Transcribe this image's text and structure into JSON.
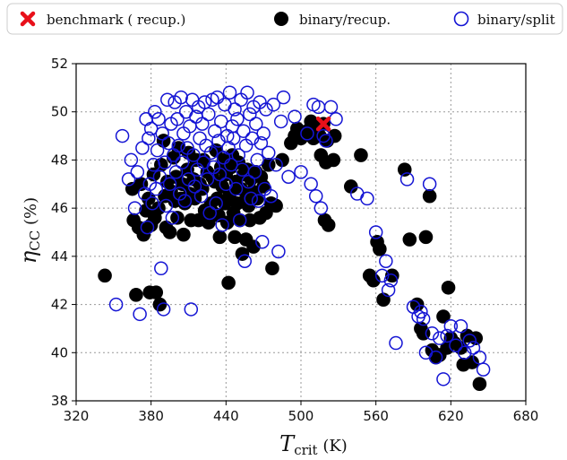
{
  "chart_data": {
    "type": "scatter",
    "xlabel": {
      "main": "T",
      "sub": "crit",
      "unit": " (K)"
    },
    "ylabel": {
      "main": "η",
      "sub": "CC",
      "unit": " (%)"
    },
    "xlim": [
      320,
      680
    ],
    "ylim": [
      38,
      52
    ],
    "xticks": [
      320,
      380,
      440,
      500,
      560,
      620,
      680
    ],
    "yticks": [
      38,
      40,
      42,
      44,
      46,
      48,
      50,
      52
    ],
    "grid": true,
    "legend": {
      "placement": "top",
      "entries": [
        "benchmark ( recup.)",
        "binary/recup.",
        "binary/split"
      ]
    },
    "colors": {
      "benchmark": "#e8101a",
      "recup": "#000000",
      "split": "#1414d4"
    },
    "series": [
      {
        "name": "binary/recup.",
        "marker": "filled-circle",
        "points": [
          [
            343,
            43.2
          ],
          [
            365,
            46.8
          ],
          [
            366,
            45.5
          ],
          [
            368,
            42.4
          ],
          [
            370,
            45.2
          ],
          [
            372,
            47
          ],
          [
            374,
            44.9
          ],
          [
            376,
            45.9
          ],
          [
            378,
            46.4
          ],
          [
            379,
            42.5
          ],
          [
            380,
            45.3
          ],
          [
            382,
            47.4
          ],
          [
            383,
            45.6
          ],
          [
            384,
            42.5
          ],
          [
            386,
            46
          ],
          [
            387,
            42
          ],
          [
            388,
            47.8
          ],
          [
            390,
            48.8
          ],
          [
            391,
            46.5
          ],
          [
            392,
            45.2
          ],
          [
            393,
            47.1
          ],
          [
            395,
            45
          ],
          [
            396,
            46.7
          ],
          [
            398,
            48.1
          ],
          [
            399,
            46.3
          ],
          [
            400,
            47.3
          ],
          [
            401,
            45.6
          ],
          [
            402,
            48.5
          ],
          [
            404,
            46.4
          ],
          [
            405,
            47
          ],
          [
            406,
            44.9
          ],
          [
            407,
            46.2
          ],
          [
            409,
            47.6
          ],
          [
            410,
            48.3
          ],
          [
            411,
            46.6
          ],
          [
            412,
            45.5
          ],
          [
            414,
            47.2
          ],
          [
            415,
            46.4
          ],
          [
            416,
            48
          ],
          [
            418,
            45.5
          ],
          [
            419,
            47
          ],
          [
            421,
            46.8
          ],
          [
            422,
            48
          ],
          [
            423,
            45.9
          ],
          [
            425,
            47.5
          ],
          [
            426,
            45.4
          ],
          [
            428,
            46.2
          ],
          [
            429,
            47.3
          ],
          [
            430,
            45.8
          ],
          [
            431,
            47.1
          ],
          [
            432,
            48.4
          ],
          [
            433,
            46.4
          ],
          [
            434,
            45.7
          ],
          [
            435,
            44.8
          ],
          [
            436,
            47.7
          ],
          [
            437,
            46.9
          ],
          [
            438,
            48
          ],
          [
            439,
            46.2
          ],
          [
            440,
            47.4
          ],
          [
            441,
            45.4
          ],
          [
            442,
            42.9
          ],
          [
            443,
            46.6
          ],
          [
            444,
            47.7
          ],
          [
            445,
            48.2
          ],
          [
            446,
            45.8
          ],
          [
            447,
            44.8
          ],
          [
            448,
            47.1
          ],
          [
            449,
            46.2
          ],
          [
            450,
            47.9
          ],
          [
            451,
            45.5
          ],
          [
            452,
            46.8
          ],
          [
            453,
            44.1
          ],
          [
            454,
            47.4
          ],
          [
            455,
            46.3
          ],
          [
            456,
            44.7
          ],
          [
            457,
            47.6
          ],
          [
            458,
            46.1
          ],
          [
            459,
            45.5
          ],
          [
            460,
            47.2
          ],
          [
            461,
            46.7
          ],
          [
            462,
            44.4
          ],
          [
            464,
            47.5
          ],
          [
            465,
            46.4
          ],
          [
            467,
            45.6
          ],
          [
            468,
            47.3
          ],
          [
            470,
            46.9
          ],
          [
            472,
            45.8
          ],
          [
            474,
            47.8
          ],
          [
            476,
            46.2
          ],
          [
            477,
            43.5
          ],
          [
            480,
            46.1
          ],
          [
            485,
            48
          ],
          [
            492,
            48.7
          ],
          [
            495,
            49
          ],
          [
            497,
            49.3
          ],
          [
            500,
            48.9
          ],
          [
            505,
            49.2
          ],
          [
            508,
            49.6
          ],
          [
            510,
            48.9
          ],
          [
            513,
            49.3
          ],
          [
            515,
            49
          ],
          [
            516,
            48.2
          ],
          [
            518,
            49.5
          ],
          [
            519,
            45.5
          ],
          [
            520,
            47.9
          ],
          [
            521,
            48.8
          ],
          [
            522,
            45.3
          ],
          [
            526,
            48
          ],
          [
            527,
            49
          ],
          [
            540,
            46.9
          ],
          [
            548,
            48.2
          ],
          [
            555,
            43.2
          ],
          [
            558,
            43
          ],
          [
            561,
            44.6
          ],
          [
            563,
            44.3
          ],
          [
            566,
            42.2
          ],
          [
            573,
            43.2
          ],
          [
            583,
            47.6
          ],
          [
            587,
            44.7
          ],
          [
            593,
            42
          ],
          [
            596,
            41
          ],
          [
            598,
            40.8
          ],
          [
            600,
            44.8
          ],
          [
            603,
            46.5
          ],
          [
            605,
            40.1
          ],
          [
            608,
            39.8
          ],
          [
            611,
            39.9
          ],
          [
            614,
            41.5
          ],
          [
            617,
            40.2
          ],
          [
            618,
            42.7
          ],
          [
            620,
            40.6
          ],
          [
            623,
            40.4
          ],
          [
            628,
            40.2
          ],
          [
            630,
            39.5
          ],
          [
            633,
            40.7
          ],
          [
            637,
            39.6
          ],
          [
            640,
            40.6
          ],
          [
            643,
            38.7
          ]
        ]
      },
      {
        "name": "binary/split",
        "marker": "hollow-circle",
        "points": [
          [
            352,
            42
          ],
          [
            357,
            49
          ],
          [
            362,
            47.2
          ],
          [
            364,
            48
          ],
          [
            367,
            46
          ],
          [
            369,
            47.5
          ],
          [
            371,
            41.6
          ],
          [
            373,
            48.5
          ],
          [
            375,
            46.6
          ],
          [
            376,
            49.7
          ],
          [
            377,
            45.2
          ],
          [
            378,
            48.9
          ],
          [
            379,
            47
          ],
          [
            380,
            49.3
          ],
          [
            381,
            46.2
          ],
          [
            382,
            47.8
          ],
          [
            383,
            50
          ],
          [
            384,
            46.8
          ],
          [
            385,
            48.4
          ],
          [
            386,
            49.7
          ],
          [
            387,
            47.3
          ],
          [
            388,
            43.5
          ],
          [
            389,
            49.1
          ],
          [
            390,
            41.8
          ],
          [
            391,
            47.9
          ],
          [
            392,
            46.1
          ],
          [
            393,
            50.5
          ],
          [
            394,
            48.7
          ],
          [
            395,
            47
          ],
          [
            396,
            49.5
          ],
          [
            397,
            45.6
          ],
          [
            398,
            48.2
          ],
          [
            399,
            50.4
          ],
          [
            400,
            47.5
          ],
          [
            401,
            49.7
          ],
          [
            402,
            48.6
          ],
          [
            403,
            46.6
          ],
          [
            404,
            50.6
          ],
          [
            405,
            47.9
          ],
          [
            406,
            49.1
          ],
          [
            407,
            46.3
          ],
          [
            408,
            50
          ],
          [
            409,
            48.5
          ],
          [
            410,
            47.2
          ],
          [
            411,
            49.4
          ],
          [
            412,
            41.8
          ],
          [
            413,
            50.5
          ],
          [
            414,
            48.2
          ],
          [
            415,
            46.9
          ],
          [
            416,
            49.8
          ],
          [
            417,
            47.6
          ],
          [
            418,
            50.2
          ],
          [
            419,
            48.9
          ],
          [
            420,
            46.5
          ],
          [
            421,
            49.5
          ],
          [
            422,
            47.9
          ],
          [
            423,
            50.4
          ],
          [
            424,
            48.6
          ],
          [
            425,
            47.2
          ],
          [
            426,
            49.9
          ],
          [
            427,
            45.8
          ],
          [
            428,
            48.3
          ],
          [
            429,
            50.5
          ],
          [
            430,
            47.7
          ],
          [
            431,
            49.2
          ],
          [
            432,
            46.2
          ],
          [
            433,
            50.6
          ],
          [
            434,
            48.8
          ],
          [
            435,
            47.4
          ],
          [
            436,
            49.6
          ],
          [
            437,
            45.3
          ],
          [
            438,
            48.1
          ],
          [
            439,
            50.3
          ],
          [
            440,
            47
          ],
          [
            441,
            49
          ],
          [
            442,
            48.5
          ],
          [
            443,
            50.8
          ],
          [
            444,
            47.8
          ],
          [
            445,
            49.4
          ],
          [
            446,
            48.9
          ],
          [
            447,
            50.1
          ],
          [
            448,
            46.8
          ],
          [
            449,
            49.7
          ],
          [
            450,
            48.2
          ],
          [
            451,
            45.5
          ],
          [
            452,
            50.5
          ],
          [
            453,
            47.6
          ],
          [
            454,
            49.2
          ],
          [
            455,
            43.8
          ],
          [
            456,
            48.6
          ],
          [
            457,
            50.8
          ],
          [
            458,
            47.1
          ],
          [
            459,
            49.9
          ],
          [
            460,
            46.4
          ],
          [
            461,
            48.9
          ],
          [
            462,
            50.2
          ],
          [
            463,
            47.5
          ],
          [
            464,
            49.5
          ],
          [
            465,
            48
          ],
          [
            466,
            46.3
          ],
          [
            467,
            50.4
          ],
          [
            468,
            48.7
          ],
          [
            469,
            44.6
          ],
          [
            470,
            49.1
          ],
          [
            471,
            46.8
          ],
          [
            472,
            50.1
          ],
          [
            474,
            48.3
          ],
          [
            476,
            46.5
          ],
          [
            478,
            50.3
          ],
          [
            480,
            47.8
          ],
          [
            482,
            44.2
          ],
          [
            484,
            49.6
          ],
          [
            486,
            50.6
          ],
          [
            490,
            47.3
          ],
          [
            495,
            49.8
          ],
          [
            500,
            47.5
          ],
          [
            505,
            49.1
          ],
          [
            508,
            47
          ],
          [
            510,
            50.3
          ],
          [
            512,
            46.5
          ],
          [
            514,
            50.2
          ],
          [
            516,
            46
          ],
          [
            518,
            49
          ],
          [
            520,
            48.8
          ],
          [
            524,
            50.2
          ],
          [
            528,
            49.7
          ],
          [
            545,
            46.6
          ],
          [
            553,
            46.4
          ],
          [
            560,
            45
          ],
          [
            565,
            43.2
          ],
          [
            568,
            43.8
          ],
          [
            570,
            42.6
          ],
          [
            572,
            43
          ],
          [
            576,
            40.4
          ],
          [
            585,
            47.2
          ],
          [
            590,
            41.9
          ],
          [
            594,
            41.5
          ],
          [
            596,
            41.7
          ],
          [
            598,
            41.4
          ],
          [
            600,
            40
          ],
          [
            603,
            47
          ],
          [
            605,
            40.8
          ],
          [
            608,
            39.8
          ],
          [
            611,
            40.6
          ],
          [
            614,
            38.9
          ],
          [
            617,
            40.7
          ],
          [
            620,
            41.1
          ],
          [
            624,
            40.3
          ],
          [
            628,
            41.1
          ],
          [
            631,
            40
          ],
          [
            635,
            40.5
          ],
          [
            638,
            40.2
          ],
          [
            643,
            39.8
          ],
          [
            646,
            39.3
          ]
        ]
      },
      {
        "name": "benchmark ( recup.)",
        "marker": "x",
        "points": [
          [
            518,
            49.5
          ]
        ]
      }
    ]
  }
}
